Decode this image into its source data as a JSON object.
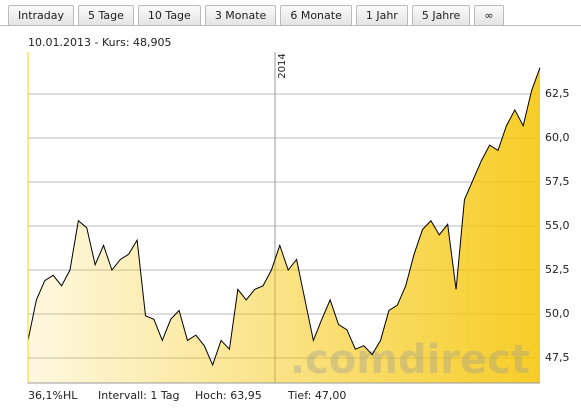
{
  "tabs": [
    "Intraday",
    "5 Tage",
    "10 Tage",
    "3 Monate",
    "6 Monate",
    "1 Jahr",
    "5 Jahre",
    "∞"
  ],
  "chart_data": {
    "type": "line",
    "info": "10.01.2013  -  Kurs: 48,905",
    "annotation": "2014",
    "watermark": ".comdirect",
    "values": [
      48.5,
      50.8,
      51.9,
      52.2,
      51.6,
      52.5,
      55.3,
      54.9,
      52.8,
      53.9,
      52.5,
      53.1,
      53.4,
      54.2,
      49.9,
      49.7,
      48.5,
      49.7,
      50.2,
      48.5,
      48.8,
      48.2,
      47.1,
      48.5,
      48.0,
      51.4,
      50.8,
      51.4,
      51.6,
      52.5,
      53.9,
      52.5,
      53.1,
      50.8,
      48.5,
      49.7,
      50.8,
      49.4,
      49.1,
      48.0,
      48.2,
      47.7,
      48.5,
      50.2,
      50.5,
      51.6,
      53.4,
      54.8,
      55.3,
      54.5,
      55.1,
      51.4,
      56.5,
      57.6,
      58.7,
      59.6,
      59.3,
      60.7,
      61.6,
      60.7,
      62.7,
      64.0
    ],
    "color": "#000000",
    "fill": "#f5c400",
    "ylim": [
      46.08,
      64.89
    ],
    "yticks": [
      {
        "value": 47.5,
        "label": "47,5"
      },
      {
        "value": 50,
        "label": "50,0"
      },
      {
        "value": 52.5,
        "label": "52,5"
      },
      {
        "value": 55,
        "label": "55,0"
      },
      {
        "value": 57.5,
        "label": "57,5"
      },
      {
        "value": 60,
        "label": "60,0"
      },
      {
        "value": 62.5,
        "label": "62,5"
      }
    ],
    "grid": true
  },
  "footer": [
    "36,1%HL",
    "Intervall: 1 Tag",
    "Hoch: 63,95",
    "Tief: 47,00"
  ]
}
